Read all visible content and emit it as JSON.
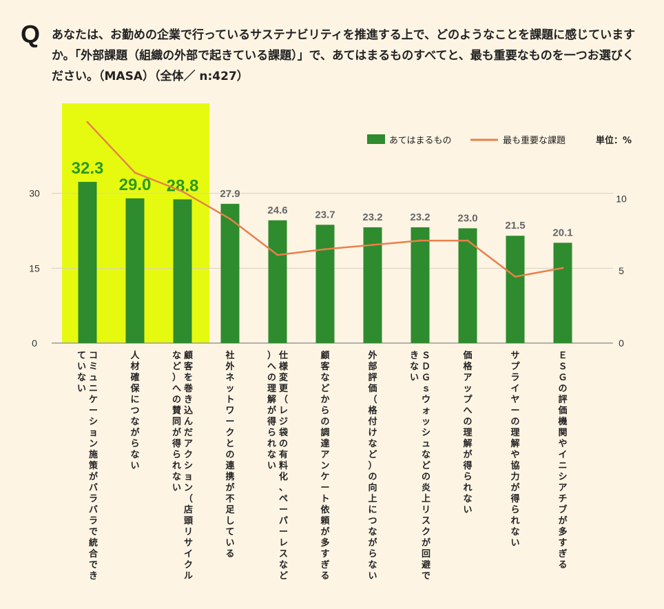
{
  "question": {
    "mark": "Q",
    "text": "あなたは、お勤めの企業で行っているサステナビリティを推進する上で、どのようなことを課題に感じていますか。「外部課題（組織の外部で起きている課題）」で、あてはまるものすべてと、最も重要なものを一つお選びください。（MASA）（全体／ n:427）"
  },
  "colors": {
    "bar": "#2e8b2e",
    "line": "#e8804a",
    "highlight": "#e6fa0f",
    "highlight_label": "#2a9a1a",
    "label": "#666666"
  },
  "chart_data": {
    "type": "bar",
    "categories": [
      "コミュニケーション施策がバラバラで統合できていない",
      "人材確保につながらない",
      "顧客を巻き込んだアクション（店頭リサイクルなど）への賛同が得られない",
      "社外ネットワークとの連携が不足している",
      "仕様変更（レジ袋の有料化、ペーパーレスなど）への理解が得られない",
      "顧客などからの調達アンケート依頼が多すぎる",
      "外部評価（格付けなど）の向上につながらない",
      "ＳＤＧｓウォッシュなどの炎上リスクが回避できない",
      "価格アップへの理解が得られない",
      "サプライヤーの理解や協力が得られない",
      "ＥＳＧの評価機関やイニシアチブが多すぎる"
    ],
    "series": [
      {
        "name": "あてはまるもの",
        "type": "bar",
        "axis": "left",
        "values": [
          32.3,
          29.0,
          28.8,
          27.9,
          24.6,
          23.7,
          23.2,
          23.2,
          23.0,
          21.5,
          20.1
        ],
        "labels": [
          "32.3",
          "29.0",
          "28.8",
          "27.9",
          "24.6",
          "23.7",
          "23.2",
          "23.2",
          "23.0",
          "21.5",
          "20.1"
        ]
      },
      {
        "name": "最も重要な課題",
        "type": "line",
        "axis": "right",
        "values": [
          15.3,
          11.8,
          10.5,
          8.6,
          6.1,
          6.5,
          6.8,
          7.1,
          7.1,
          4.6,
          5.2
        ]
      }
    ],
    "highlight_count": 3,
    "left_axis": {
      "ylim": [
        0,
        32.3
      ],
      "ticks": [
        "0",
        "15",
        "30"
      ],
      "tick_values": [
        0,
        15,
        30
      ]
    },
    "right_axis": {
      "ylim": [
        0,
        10.4
      ],
      "ticks": [
        "0",
        "5",
        "10"
      ],
      "tick_values": [
        0,
        5,
        10
      ]
    },
    "unit_label": "単位：%",
    "legend_position": "top-right",
    "grid": true
  }
}
